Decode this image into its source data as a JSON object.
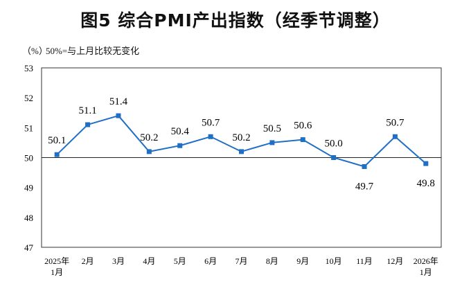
{
  "chart_data": {
    "type": "line",
    "title": "图5  综合PMI产出指数（经季节调整）",
    "ylabel": "（%）",
    "annotation": "50%=与上月比较无变化",
    "categories": [
      [
        "2025年",
        "1月"
      ],
      [
        "2月"
      ],
      [
        "3月"
      ],
      [
        "4月"
      ],
      [
        "5月"
      ],
      [
        "6月"
      ],
      [
        "7月"
      ],
      [
        "8月"
      ],
      [
        "9月"
      ],
      [
        "10月"
      ],
      [
        "11月"
      ],
      [
        "12月"
      ],
      [
        "2026年",
        "1月"
      ]
    ],
    "values": [
      50.1,
      51.1,
      51.4,
      50.2,
      50.4,
      50.7,
      50.2,
      50.5,
      50.6,
      50.0,
      49.7,
      50.7,
      49.8
    ],
    "data_labels": [
      "50.1",
      "51.1",
      "51.4",
      "50.2",
      "50.4",
      "50.7",
      "50.2",
      "50.5",
      "50.6",
      "50.0",
      "49.7",
      "50.7",
      "49.8"
    ],
    "ylim": [
      47,
      53
    ],
    "yticks": [
      47,
      48,
      49,
      50,
      51,
      52,
      53
    ],
    "reference_line": 50,
    "grid": false,
    "color": "#1f6fc5",
    "marker": "square"
  }
}
